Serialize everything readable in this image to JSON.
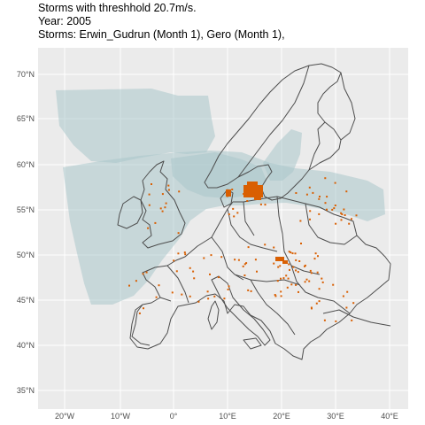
{
  "title": {
    "line1": "Storms with threshhold 20.7m/s.",
    "line2": "Year: 2005",
    "line3": "Storms: Erwin_Gudrun (Month 1), Gero (Month 1),"
  },
  "axes": {
    "y_ticks": [
      "35°N",
      "40°N",
      "45°N",
      "50°N",
      "55°N",
      "60°N",
      "65°N",
      "70°N"
    ],
    "x_ticks": [
      "20°W",
      "10°W",
      "0°",
      "10°E",
      "20°E",
      "30°E",
      "40°E"
    ]
  },
  "colors": {
    "panel_background": "#ebebeb",
    "grid": "#ffffff",
    "storm_footprint": "#a9c7ca",
    "country_border": "#4d4d4d",
    "exceedance": "#d95f02"
  }
}
